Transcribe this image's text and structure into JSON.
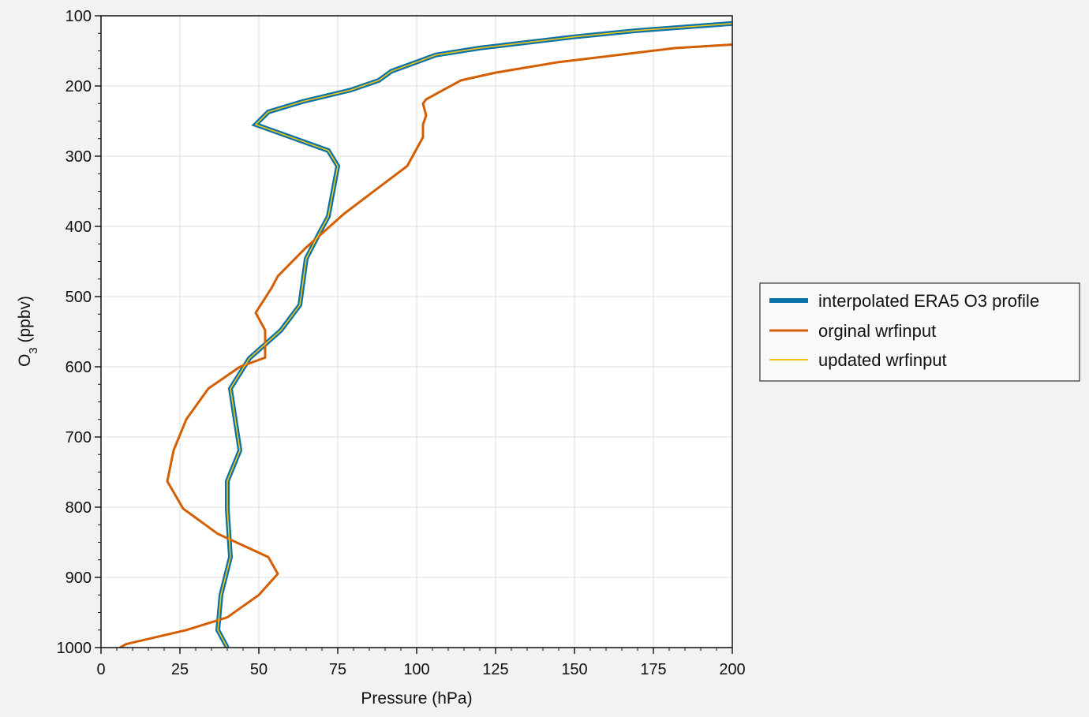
{
  "chart_data": {
    "type": "line",
    "xlabel": "Pressure (hPa)",
    "ylabel_main": "O",
    "ylabel_sub": "3",
    "ylabel_rest": " (ppbv)",
    "xlim": [
      0,
      200
    ],
    "ylim": [
      1000,
      100
    ],
    "y_inverted": true,
    "xticks": [
      0,
      25,
      50,
      75,
      100,
      125,
      150,
      175,
      200
    ],
    "yticks": [
      100,
      200,
      300,
      400,
      500,
      600,
      700,
      800,
      900,
      1000
    ],
    "grid": true,
    "legend_position": "outside-right",
    "series": [
      {
        "name": "interpolated ERA5 O3 profile",
        "color": "#0a72a6",
        "style": "thick",
        "points": [
          [
            200,
            111
          ],
          [
            170,
            121
          ],
          [
            150,
            130
          ],
          [
            120,
            146
          ],
          [
            106,
            156
          ],
          [
            100,
            166
          ],
          [
            92,
            179
          ],
          [
            88,
            192
          ],
          [
            79,
            206
          ],
          [
            64,
            222
          ],
          [
            53,
            237
          ],
          [
            49,
            255
          ],
          [
            59,
            271
          ],
          [
            72,
            292
          ],
          [
            75,
            314
          ],
          [
            72,
            386
          ],
          [
            69,
            411
          ],
          [
            65,
            446
          ],
          [
            63,
            512
          ],
          [
            57,
            548
          ],
          [
            47,
            588
          ],
          [
            41,
            631
          ],
          [
            44,
            719
          ],
          [
            40,
            763
          ],
          [
            40,
            802
          ],
          [
            41,
            871
          ],
          [
            38,
            925
          ],
          [
            37,
            975
          ],
          [
            40,
            1000
          ]
        ]
      },
      {
        "name": "orginal wrfinput",
        "color": "#d45e00",
        "style": "normal",
        "points": [
          [
            200,
            141
          ],
          [
            182,
            146
          ],
          [
            145,
            166
          ],
          [
            125,
            181
          ],
          [
            114,
            192
          ],
          [
            103,
            219
          ],
          [
            102,
            225
          ],
          [
            103,
            242
          ],
          [
            102,
            255
          ],
          [
            102,
            273
          ],
          [
            97,
            314
          ],
          [
            87,
            348
          ],
          [
            77,
            382
          ],
          [
            65,
            430
          ],
          [
            56,
            471
          ],
          [
            54,
            488
          ],
          [
            49,
            523
          ],
          [
            52,
            548
          ],
          [
            52,
            587
          ],
          [
            44,
            600
          ],
          [
            34,
            631
          ],
          [
            27,
            675
          ],
          [
            23,
            719
          ],
          [
            21,
            763
          ],
          [
            26,
            802
          ],
          [
            37,
            838
          ],
          [
            53,
            871
          ],
          [
            56,
            895
          ],
          [
            50,
            925
          ],
          [
            40,
            957
          ],
          [
            27,
            975
          ],
          [
            8,
            995
          ],
          [
            6,
            1000
          ]
        ]
      },
      {
        "name": "updated wrfinput",
        "color": "#f0c419",
        "style": "thin",
        "points": [
          [
            200,
            111
          ],
          [
            170,
            121
          ],
          [
            150,
            130
          ],
          [
            120,
            146
          ],
          [
            106,
            156
          ],
          [
            100,
            166
          ],
          [
            92,
            179
          ],
          [
            88,
            192
          ],
          [
            79,
            206
          ],
          [
            64,
            222
          ],
          [
            53,
            237
          ],
          [
            49,
            255
          ],
          [
            59,
            271
          ],
          [
            72,
            292
          ],
          [
            75,
            314
          ],
          [
            72,
            386
          ],
          [
            69,
            411
          ],
          [
            65,
            446
          ],
          [
            63,
            512
          ],
          [
            57,
            548
          ],
          [
            47,
            588
          ],
          [
            41,
            631
          ],
          [
            44,
            719
          ],
          [
            40,
            763
          ],
          [
            40,
            802
          ],
          [
            41,
            871
          ],
          [
            38,
            925
          ],
          [
            37,
            975
          ],
          [
            40,
            1000
          ]
        ]
      }
    ]
  }
}
